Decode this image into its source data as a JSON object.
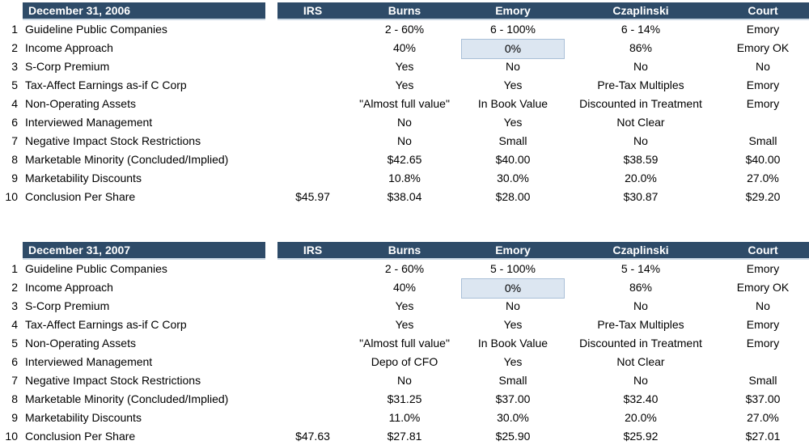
{
  "colors": {
    "header_bg": "#2e4b68",
    "header_text": "#ffffff",
    "header_edge": "#c9d6e2",
    "highlight_bg": "#dce6f1",
    "highlight_border": "#a9bfd7",
    "body_text": "#000000",
    "page_bg": "#ffffff"
  },
  "tables": [
    {
      "title": "December 31, 2006",
      "columns": [
        "IRS",
        "Burns",
        "Emory",
        "Czaplinski",
        "Court"
      ],
      "rows": [
        {
          "num": "1",
          "label": "Guideline Public Companies",
          "cells": [
            "",
            "2 - 60%",
            "6 - 100%",
            "6 - 14%",
            "Emory"
          ],
          "highlight": null
        },
        {
          "num": "2",
          "label": "Income Approach",
          "cells": [
            "",
            "40%",
            "0%",
            "86%",
            "Emory OK"
          ],
          "highlight": 2
        },
        {
          "num": "3",
          "label": "S-Corp Premium",
          "cells": [
            "",
            "Yes",
            "No",
            "No",
            "No"
          ],
          "highlight": null
        },
        {
          "num": "5",
          "label": "Tax-Affect Earnings as-if C Corp",
          "cells": [
            "",
            "Yes",
            "Yes",
            "Pre-Tax Multiples",
            "Emory"
          ],
          "highlight": null
        },
        {
          "num": "4",
          "label": "Non-Operating Assets",
          "cells": [
            "",
            "\"Almost full value\"",
            "In Book Value",
            "Discounted in Treatment",
            "Emory"
          ],
          "highlight": null
        },
        {
          "num": "6",
          "label": "Interviewed Management",
          "cells": [
            "",
            "No",
            "Yes",
            "Not Clear",
            ""
          ],
          "highlight": null
        },
        {
          "num": "7",
          "label": "Negative Impact Stock Restrictions",
          "cells": [
            "",
            "No",
            "Small",
            "No",
            "Small"
          ],
          "highlight": null
        },
        {
          "num": "8",
          "label": "Marketable Minority (Concluded/Implied)",
          "cells": [
            "",
            "$42.65",
            "$40.00",
            "$38.59",
            "$40.00"
          ],
          "highlight": null
        },
        {
          "num": "9",
          "label": "Marketability Discounts",
          "cells": [
            "",
            "10.8%",
            "30.0%",
            "20.0%",
            "27.0%"
          ],
          "highlight": null
        },
        {
          "num": "10",
          "label": "Conclusion Per Share",
          "cells": [
            "$45.97",
            "$38.04",
            "$28.00",
            "$30.87",
            "$29.20"
          ],
          "highlight": null
        }
      ]
    },
    {
      "title": "December 31, 2007",
      "columns": [
        "IRS",
        "Burns",
        "Emory",
        "Czaplinski",
        "Court"
      ],
      "rows": [
        {
          "num": "1",
          "label": "Guideline Public Companies",
          "cells": [
            "",
            "2 - 60%",
            "5 - 100%",
            "5 - 14%",
            "Emory"
          ],
          "highlight": null
        },
        {
          "num": "2",
          "label": "Income Approach",
          "cells": [
            "",
            "40%",
            "0%",
            "86%",
            "Emory OK"
          ],
          "highlight": 2
        },
        {
          "num": "3",
          "label": "S-Corp Premium",
          "cells": [
            "",
            "Yes",
            "No",
            "No",
            "No"
          ],
          "highlight": null
        },
        {
          "num": "4",
          "label": "Tax-Affect Earnings as-if C Corp",
          "cells": [
            "",
            "Yes",
            "Yes",
            "Pre-Tax Multiples",
            "Emory"
          ],
          "highlight": null
        },
        {
          "num": "5",
          "label": "Non-Operating Assets",
          "cells": [
            "",
            "\"Almost full value\"",
            "In Book Value",
            "Discounted in Treatment",
            "Emory"
          ],
          "highlight": null
        },
        {
          "num": "6",
          "label": "Interviewed Management",
          "cells": [
            "",
            "Depo of CFO",
            "Yes",
            "Not Clear",
            ""
          ],
          "highlight": null
        },
        {
          "num": "7",
          "label": "Negative Impact Stock Restrictions",
          "cells": [
            "",
            "No",
            "Small",
            "No",
            "Small"
          ],
          "highlight": null
        },
        {
          "num": "8",
          "label": "Marketable Minority (Concluded/Implied)",
          "cells": [
            "",
            "$31.25",
            "$37.00",
            "$32.40",
            "$37.00"
          ],
          "highlight": null
        },
        {
          "num": "9",
          "label": "Marketability Discounts",
          "cells": [
            "",
            "11.0%",
            "30.0%",
            "20.0%",
            "27.0%"
          ],
          "highlight": null
        },
        {
          "num": "10",
          "label": "Conclusion Per Share",
          "cells": [
            "$47.63",
            "$27.81",
            "$25.90",
            "$25.92",
            "$27.01"
          ],
          "highlight": null
        }
      ]
    }
  ]
}
